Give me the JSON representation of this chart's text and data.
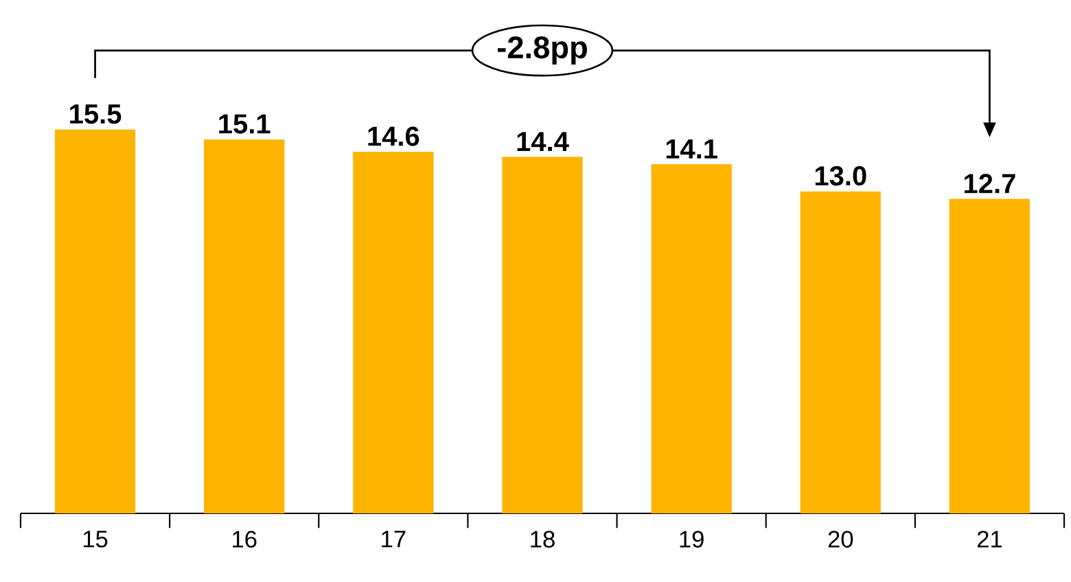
{
  "chart_data": {
    "type": "bar",
    "categories": [
      "15",
      "16",
      "17",
      "18",
      "19",
      "20",
      "21"
    ],
    "values": [
      15.5,
      15.1,
      14.6,
      14.4,
      14.1,
      13.0,
      12.7
    ],
    "color": "#ffb400",
    "value_labels": [
      "15.5",
      "15.1",
      "14.6",
      "14.4",
      "14.1",
      "13.0",
      "12.7"
    ],
    "tick_labels": "x",
    "grid": false,
    "annotations": [
      "-2.8pp"
    ]
  }
}
